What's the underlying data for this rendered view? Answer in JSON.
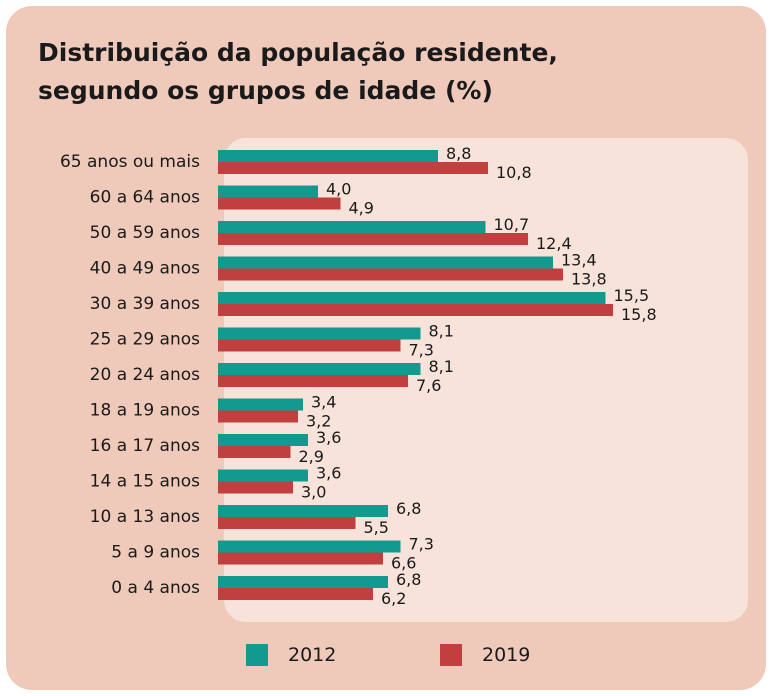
{
  "chart_data": {
    "type": "bar",
    "orientation": "horizontal",
    "title": "Distribuição da população residente, segundo os grupos de idade (%)",
    "title_lines": [
      "Distribuição da população residente,",
      "segundo os grupos de idade (%)"
    ],
    "categories": [
      "65 anos ou mais",
      "60 a 64 anos",
      "50 a 59 anos",
      "40 a 49 anos",
      "30 a 39 anos",
      "25 a 29 anos",
      "20 a 24 anos",
      "18 a 19 anos",
      "16 a 17 anos",
      "14 a 15 anos",
      "10 a 13 anos",
      "5 a 9 anos",
      "0 a 4 anos"
    ],
    "series": [
      {
        "name": "2012",
        "color": "#139a8e",
        "values": [
          8.8,
          4.0,
          10.7,
          13.4,
          15.5,
          8.1,
          8.1,
          3.4,
          3.6,
          3.6,
          6.8,
          7.3,
          6.8
        ],
        "labels": [
          "8,8",
          "4,0",
          "10,7",
          "13,4",
          "15,5",
          "8,1",
          "8,1",
          "3,4",
          "3,6",
          "3,6",
          "6,8",
          "7,3",
          "6,8"
        ]
      },
      {
        "name": "2019",
        "color": "#c1403f",
        "values": [
          10.8,
          4.9,
          12.4,
          13.8,
          15.8,
          7.3,
          7.6,
          3.2,
          2.9,
          3.0,
          5.5,
          6.6,
          6.2
        ],
        "labels": [
          "10,8",
          "4,9",
          "12,4",
          "13,8",
          "15,8",
          "7,3",
          "7,6",
          "3,2",
          "2,9",
          "3,0",
          "5,5",
          "6,6",
          "6,2"
        ]
      }
    ],
    "xlim": [
      0,
      16
    ],
    "grid": false,
    "legend_position": "bottom"
  }
}
